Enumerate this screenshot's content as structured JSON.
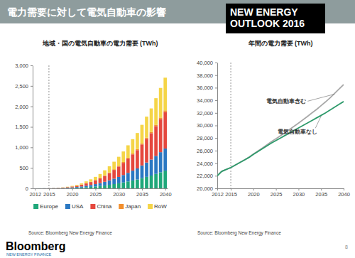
{
  "header": {
    "title": "電力需要に対して電気自動車の影響",
    "badge": [
      "NEW ENERGY",
      "OUTLOOK 2016"
    ]
  },
  "footer": {
    "logo": "Bloomberg",
    "logo_subtitle": "NEW ENERGY FINANCE",
    "page": 8
  },
  "chart_data": [
    {
      "type": "bar",
      "stacked": true,
      "legend": "bottom",
      "title": "地域・国の電気自動車の電力需要 (TWh)",
      "source": "Source: Bloomberg New Energy Finance",
      "x": [
        2012,
        2013,
        2014,
        2015,
        2016,
        2017,
        2018,
        2019,
        2020,
        2021,
        2022,
        2023,
        2024,
        2025,
        2026,
        2027,
        2028,
        2029,
        2030,
        2031,
        2032,
        2033,
        2034,
        2035,
        2036,
        2037,
        2038,
        2039,
        2040
      ],
      "xlim": [
        2011.5,
        2040.5
      ],
      "xticks": [
        2012,
        2015,
        2020,
        2025,
        2030,
        2035,
        2040
      ],
      "ylim": [
        0,
        3000
      ],
      "yticks": [
        0,
        500,
        {
          "value": 1000,
          "label": "1,000"
        },
        {
          "value": 1500,
          "label": "1,500"
        },
        {
          "value": 2000,
          "label": "2,000"
        },
        {
          "value": 2500,
          "label": "2,500"
        },
        {
          "value": 3000,
          "label": "3,000"
        }
      ],
      "vline": 2015,
      "series": [
        {
          "name": "Europe",
          "color": "#1fa77a",
          "values": [
            0,
            1,
            1,
            1,
            2,
            3,
            5,
            8,
            11,
            15,
            21,
            29,
            37,
            46,
            57,
            71,
            87,
            104,
            123,
            144,
            168,
            192,
            216,
            248,
            280,
            312,
            352,
            392,
            432
          ]
        },
        {
          "name": "USA",
          "color": "#2b78c2",
          "values": [
            1,
            1,
            2,
            2,
            3,
            4,
            6,
            9,
            13,
            18,
            25,
            35,
            45,
            57,
            71,
            89,
            109,
            131,
            155,
            181,
            210,
            240,
            270,
            310,
            350,
            390,
            440,
            490,
            540
          ]
        },
        {
          "name": "China",
          "color": "#e5483e",
          "values": [
            0,
            0,
            1,
            2,
            3,
            5,
            8,
            13,
            20,
            28,
            40,
            56,
            72,
            92,
            115,
            145,
            178,
            214,
            254,
            297,
            347,
            396,
            446,
            512,
            578,
            644,
            727,
            809,
            892
          ]
        },
        {
          "name": "Japan",
          "color": "#f28e2c",
          "values": [
            0,
            0,
            0,
            0,
            1,
            1,
            1,
            2,
            3,
            4,
            5,
            6,
            7,
            9,
            10,
            12,
            14,
            16,
            18,
            20,
            22,
            24,
            26,
            28,
            30,
            32,
            34,
            36,
            38
          ]
        },
        {
          "name": "RoW",
          "color": "#f5d547",
          "values": [
            0,
            0,
            0,
            1,
            1,
            2,
            5,
            8,
            13,
            20,
            29,
            44,
            59,
            76,
            97,
            123,
            152,
            185,
            220,
            258,
            303,
            348,
            392,
            452,
            512,
            572,
            647,
            723,
            798
          ]
        }
      ]
    },
    {
      "type": "line",
      "title": "年間の電力需要 (TWh)",
      "source": "Source: Bloomberg New Energy Finance",
      "x": [
        2012,
        2013,
        2014,
        2015,
        2016,
        2017,
        2018,
        2019,
        2020,
        2021,
        2022,
        2023,
        2024,
        2025,
        2026,
        2027,
        2028,
        2029,
        2030,
        2031,
        2032,
        2033,
        2034,
        2035,
        2036,
        2037,
        2038,
        2039,
        2040
      ],
      "xlim": [
        2012,
        2040
      ],
      "xticks": [
        2012,
        2015,
        2020,
        2025,
        2030,
        2035,
        2040
      ],
      "ylim": [
        20000,
        40000
      ],
      "yticks": [
        {
          "value": 20000,
          "label": "20,000"
        },
        {
          "value": 22000,
          "label": "22,000"
        },
        {
          "value": 24000,
          "label": "24,000"
        },
        {
          "value": 26000,
          "label": "26,000"
        },
        {
          "value": 28000,
          "label": "28,000"
        },
        {
          "value": 30000,
          "label": "30,000"
        },
        {
          "value": 32000,
          "label": "32,000"
        },
        {
          "value": 34000,
          "label": "34,000"
        },
        {
          "value": 36000,
          "label": "36,000"
        },
        {
          "value": 38000,
          "label": "38,000"
        },
        {
          "value": 40000,
          "label": "40,000"
        }
      ],
      "vline": 2015,
      "series": [
        {
          "name": "電気自動車含む",
          "color": "#a8a8a8",
          "values": [
            22000,
            22700,
            23000,
            23310,
            23710,
            24120,
            24530,
            24940,
            25460,
            25940,
            26420,
            26920,
            27420,
            27880,
            28350,
            28840,
            29340,
            29850,
            30370,
            30900,
            31450,
            32000,
            32550,
            33150,
            33750,
            34400,
            35100,
            35800,
            36500
          ]
        },
        {
          "name": "電気自動車なし",
          "color": "#2e9a6b",
          "values": [
            22000,
            22700,
            23000,
            23300,
            23700,
            24100,
            24500,
            24900,
            25400,
            25850,
            26300,
            26750,
            27200,
            27600,
            28000,
            28400,
            28800,
            29200,
            29600,
            30000,
            30400,
            30800,
            31200,
            31600,
            32000,
            32450,
            32900,
            33350,
            33800
          ]
        }
      ]
    }
  ]
}
